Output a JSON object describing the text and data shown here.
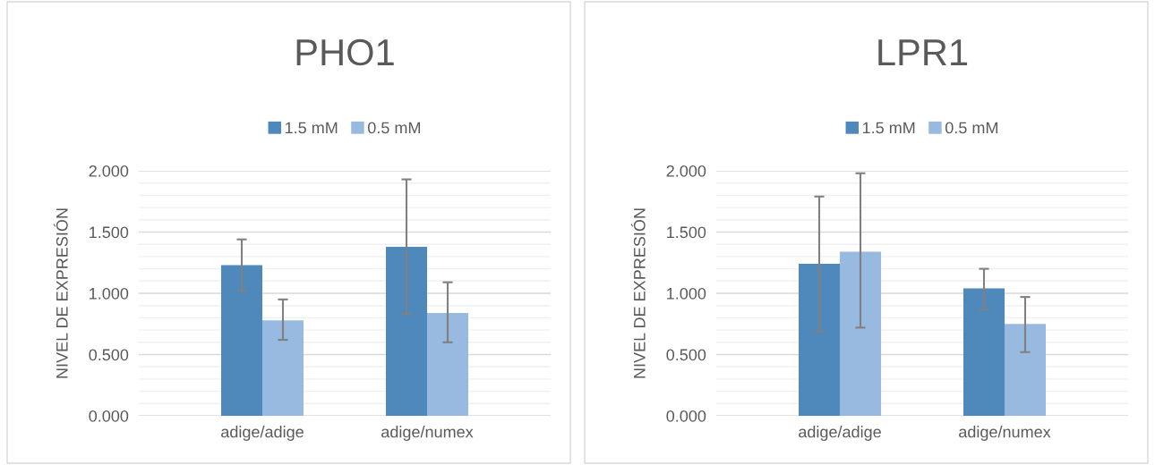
{
  "chart_data": [
    {
      "type": "bar",
      "title": "PHO1",
      "ylabel": "NIVEL DE EXPRESIÓN",
      "categories": [
        "adige/adige",
        "adige/numex"
      ],
      "series": [
        {
          "name": "1.5 mM",
          "color": "#4f88bb",
          "values": [
            1.23,
            1.38
          ],
          "errors": [
            [
              1.02,
              1.44
            ],
            [
              0.83,
              1.93
            ]
          ]
        },
        {
          "name": "0.5 mM",
          "color": "#98b9e0",
          "values": [
            0.78,
            0.84
          ],
          "errors": [
            [
              0.62,
              0.95
            ],
            [
              0.6,
              1.09
            ]
          ]
        }
      ],
      "ylim": [
        0,
        2
      ],
      "yticks": [
        {
          "value": 0,
          "label": "0.000"
        },
        {
          "value": 0.5,
          "label": "0.500"
        },
        {
          "value": 1,
          "label": "1.000"
        },
        {
          "value": 1.5,
          "label": "1.500"
        },
        {
          "value": 2,
          "label": "2.000"
        }
      ],
      "grid": "y",
      "legend": "top"
    },
    {
      "type": "bar",
      "title": "LPR1",
      "ylabel": "NIVEL DE EXPRESIÓN",
      "categories": [
        "adige/adige",
        "adige/numex"
      ],
      "series": [
        {
          "name": "1.5 mM",
          "color": "#4f88bb",
          "values": [
            1.24,
            1.04
          ],
          "errors": [
            [
              0.69,
              1.79
            ],
            [
              0.87,
              1.2
            ]
          ]
        },
        {
          "name": "0.5 mM",
          "color": "#98b9e0",
          "values": [
            1.34,
            0.75
          ],
          "errors": [
            [
              0.72,
              1.98
            ],
            [
              0.52,
              0.97
            ]
          ]
        }
      ],
      "ylim": [
        0,
        2
      ],
      "yticks": [
        {
          "value": 0,
          "label": "0.000"
        },
        {
          "value": 0.5,
          "label": "0.500"
        },
        {
          "value": 1,
          "label": "1.000"
        },
        {
          "value": 1.5,
          "label": "1.500"
        },
        {
          "value": 2,
          "label": "2.000"
        }
      ],
      "grid": "y",
      "legend": "top"
    }
  ]
}
